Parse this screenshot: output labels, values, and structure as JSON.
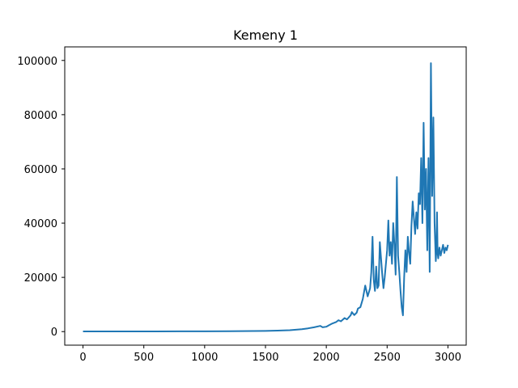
{
  "chart_data": {
    "type": "line",
    "title": "Kemeny 1",
    "xlabel": "",
    "ylabel": "",
    "xlim": [
      -150,
      3150
    ],
    "ylim": [
      -5000,
      105000
    ],
    "grid": false,
    "legend": "none",
    "x_ticks": [
      0,
      500,
      1000,
      1500,
      2000,
      2500,
      3000
    ],
    "x_tick_labels": [
      "0",
      "500",
      "1000",
      "1500",
      "2000",
      "2500",
      "3000"
    ],
    "y_ticks": [
      0,
      20000,
      40000,
      60000,
      80000,
      100000
    ],
    "y_tick_labels": [
      "0",
      "20000",
      "40000",
      "60000",
      "80000",
      "100000"
    ],
    "series": [
      {
        "color": "#1f77b4",
        "x": [
          0,
          200,
          400,
          600,
          800,
          1000,
          1200,
          1400,
          1500,
          1600,
          1700,
          1750,
          1800,
          1850,
          1900,
          1950,
          1970,
          2000,
          2020,
          2050,
          2080,
          2100,
          2120,
          2150,
          2170,
          2200,
          2210,
          2230,
          2250,
          2260,
          2280,
          2300,
          2320,
          2340,
          2360,
          2370,
          2380,
          2390,
          2400,
          2410,
          2420,
          2430,
          2440,
          2450,
          2460,
          2470,
          2480,
          2490,
          2500,
          2510,
          2520,
          2530,
          2540,
          2550,
          2560,
          2570,
          2580,
          2590,
          2600,
          2610,
          2620,
          2630,
          2640,
          2650,
          2660,
          2670,
          2680,
          2690,
          2700,
          2710,
          2720,
          2730,
          2740,
          2750,
          2760,
          2770,
          2780,
          2790,
          2800,
          2810,
          2820,
          2830,
          2840,
          2850,
          2860,
          2870,
          2880,
          2890,
          2900,
          2905,
          2910,
          2915,
          2920,
          2930,
          2940,
          2950,
          2960,
          2970,
          2980,
          2990,
          3000
        ],
        "values": [
          50,
          60,
          70,
          80,
          100,
          120,
          150,
          200,
          260,
          350,
          500,
          700,
          900,
          1200,
          1600,
          2100,
          1600,
          1800,
          2300,
          3000,
          3500,
          4200,
          3800,
          5000,
          4500,
          6000,
          7200,
          6100,
          7000,
          8500,
          9000,
          12000,
          17000,
          13000,
          16000,
          22000,
          35000,
          19000,
          15000,
          24000,
          16000,
          17000,
          33000,
          27000,
          21000,
          16000,
          20000,
          25000,
          30000,
          41000,
          28000,
          33000,
          25000,
          40000,
          32000,
          21000,
          57000,
          28000,
          22000,
          15000,
          9000,
          6000,
          20000,
          30000,
          22000,
          35000,
          29000,
          25000,
          39000,
          48000,
          42000,
          36000,
          44000,
          38000,
          51000,
          47000,
          64000,
          40000,
          77000,
          45000,
          60000,
          30000,
          64000,
          22000,
          99000,
          50000,
          79000,
          40000,
          26000,
          30000,
          44000,
          29000,
          27000,
          31000,
          28000,
          30000,
          32000,
          29000,
          31000,
          30000,
          32000
        ]
      }
    ]
  }
}
